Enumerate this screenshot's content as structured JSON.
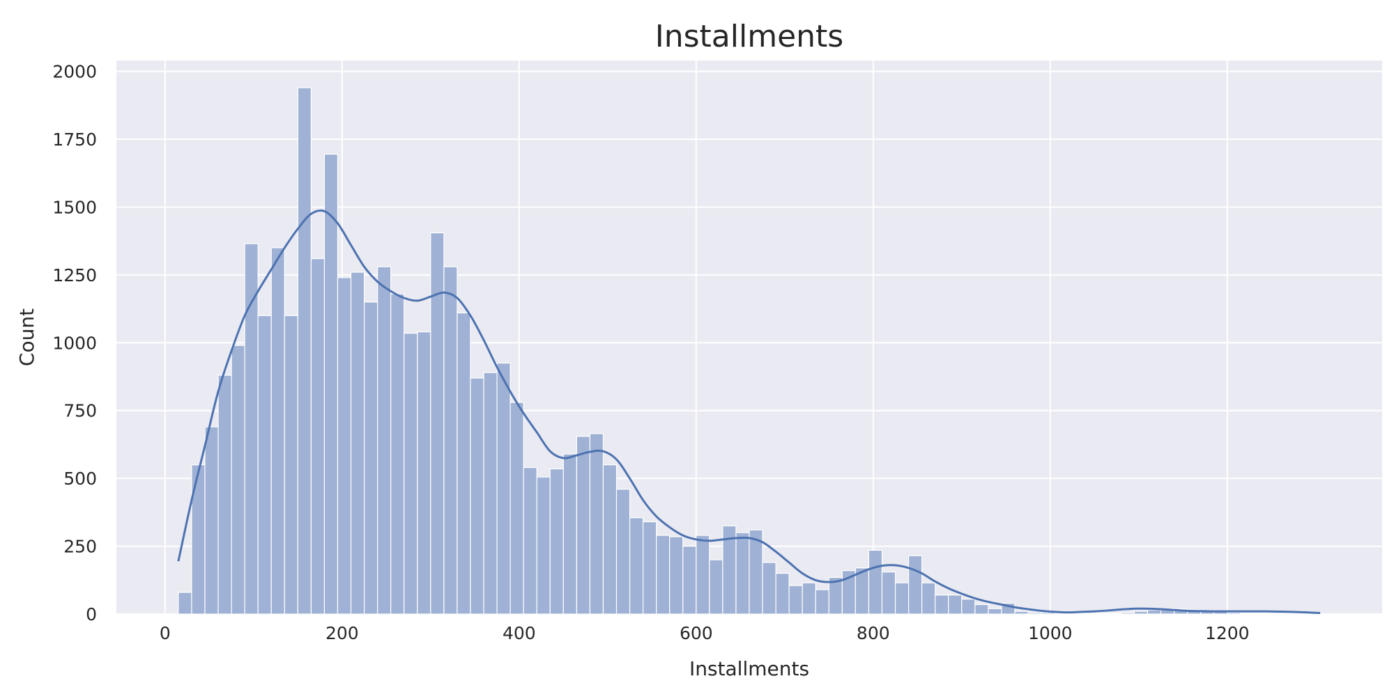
{
  "chart_data": {
    "type": "bar",
    "subtype": "histogram-with-kde",
    "title": "Installments",
    "xlabel": "Installments",
    "ylabel": "Count",
    "xlim": [
      -55,
      1375
    ],
    "ylim": [
      0,
      2040
    ],
    "x_ticks": [
      0,
      200,
      400,
      600,
      800,
      1000,
      1200
    ],
    "y_ticks": [
      0,
      250,
      500,
      750,
      1000,
      1250,
      1500,
      1750,
      2000
    ],
    "grid": true,
    "legend": "none",
    "bin_start": 15,
    "bin_width": 15,
    "counts": [
      80,
      550,
      690,
      880,
      990,
      1365,
      1100,
      1350,
      1100,
      1940,
      1310,
      1695,
      1240,
      1260,
      1150,
      1280,
      1180,
      1035,
      1040,
      1405,
      1280,
      1110,
      870,
      890,
      925,
      780,
      540,
      505,
      535,
      590,
      655,
      665,
      550,
      460,
      355,
      340,
      290,
      285,
      250,
      290,
      200,
      325,
      300,
      310,
      190,
      150,
      105,
      115,
      90,
      135,
      160,
      170,
      235,
      155,
      115,
      215,
      115,
      70,
      70,
      55,
      35,
      20,
      40,
      10,
      5,
      5,
      3,
      2,
      2,
      3,
      3,
      5,
      10,
      15,
      20,
      18,
      15,
      10,
      8,
      5,
      3,
      3,
      2,
      2,
      1,
      1,
      1,
      1
    ],
    "kde": {
      "x": [
        15,
        30,
        45,
        60,
        75,
        90,
        105,
        120,
        135,
        150,
        165,
        180,
        195,
        210,
        225,
        240,
        255,
        270,
        285,
        300,
        315,
        330,
        345,
        360,
        375,
        390,
        405,
        420,
        435,
        450,
        465,
        480,
        495,
        510,
        525,
        540,
        555,
        570,
        585,
        600,
        615,
        630,
        645,
        660,
        675,
        690,
        705,
        720,
        735,
        750,
        765,
        780,
        795,
        810,
        825,
        840,
        855,
        870,
        885,
        900,
        915,
        930,
        945,
        960,
        975,
        990,
        1005,
        1020,
        1035,
        1050,
        1065,
        1080,
        1095,
        1110,
        1125,
        1140,
        1155,
        1170,
        1185,
        1200,
        1215,
        1230,
        1245,
        1260,
        1275,
        1290,
        1305
      ],
      "y": [
        195,
        420,
        620,
        820,
        970,
        1100,
        1190,
        1270,
        1350,
        1420,
        1475,
        1485,
        1440,
        1360,
        1280,
        1225,
        1190,
        1165,
        1155,
        1170,
        1185,
        1165,
        1100,
        1010,
        910,
        820,
        740,
        670,
        600,
        575,
        585,
        598,
        600,
        570,
        500,
        420,
        360,
        320,
        290,
        275,
        270,
        275,
        280,
        280,
        265,
        230,
        190,
        150,
        125,
        118,
        125,
        145,
        165,
        178,
        180,
        170,
        150,
        120,
        95,
        75,
        58,
        45,
        35,
        25,
        18,
        12,
        8,
        6,
        8,
        10,
        13,
        17,
        20,
        20,
        18,
        15,
        12,
        11,
        10,
        10,
        10,
        10,
        10,
        9,
        8,
        6,
        4
      ]
    },
    "colors": {
      "plot_background": "#eaeaf2",
      "grid": "#ffffff",
      "bar_fill": "#9fb1d4",
      "bar_edge": "#ffffff",
      "kde_line": "#4c72b0"
    }
  }
}
